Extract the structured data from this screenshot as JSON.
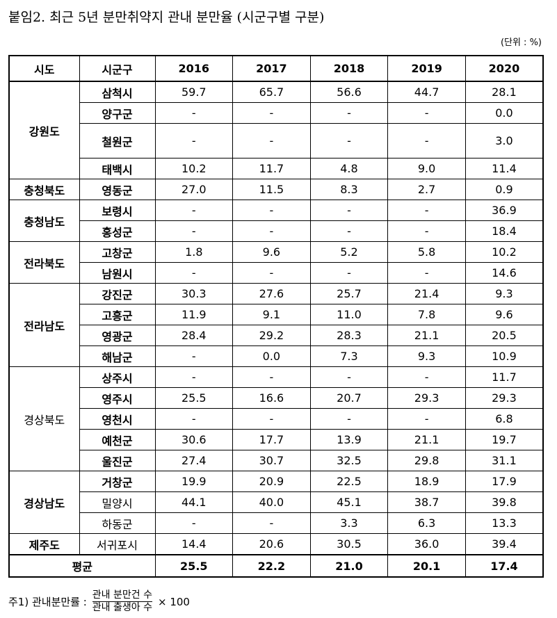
{
  "title": "붙임2. 최근 5년 분만취약지 관내 분만율 (시군구별 구분)",
  "unit": "(단위 : %)",
  "table": {
    "header": [
      "시도",
      "시군구",
      "2016",
      "2017",
      "2018",
      "2019",
      "2020"
    ],
    "groups": [
      {
        "province": "강원도",
        "rows": [
          {
            "district": "삼척시",
            "values": [
              "59.7",
              "65.7",
              "56.6",
              "44.7",
              "28.1"
            ]
          },
          {
            "district": "양구군",
            "values": [
              "-",
              "-",
              "-",
              "-",
              "0.0"
            ]
          },
          {
            "district": "철원군",
            "values": [
              "-",
              "-",
              "-",
              "-",
              "3.0"
            ]
          },
          {
            "district": "태백시",
            "values": [
              "10.2",
              "11.7",
              "4.8",
              "9.0",
              "11.4"
            ]
          }
        ]
      },
      {
        "province": "충청북도",
        "rows": [
          {
            "district": "영동군",
            "values": [
              "27.0",
              "11.5",
              "8.3",
              "2.7",
              "0.9"
            ]
          }
        ]
      },
      {
        "province": "충청남도",
        "rows": [
          {
            "district": "보령시",
            "values": [
              "-",
              "-",
              "-",
              "-",
              "36.9"
            ]
          },
          {
            "district": "홍성군",
            "values": [
              "-",
              "-",
              "-",
              "-",
              "18.4"
            ]
          }
        ]
      },
      {
        "province": "전라북도",
        "rows": [
          {
            "district": "고창군",
            "values": [
              "1.8",
              "9.6",
              "5.2",
              "5.8",
              "10.2"
            ]
          },
          {
            "district": "남원시",
            "values": [
              "-",
              "-",
              "-",
              "-",
              "14.6"
            ]
          }
        ]
      },
      {
        "province": "전라남도",
        "rows": [
          {
            "district": "강진군",
            "values": [
              "30.3",
              "27.6",
              "25.7",
              "21.4",
              "9.3"
            ]
          },
          {
            "district": "고흥군",
            "values": [
              "11.9",
              "9.1",
              "11.0",
              "7.8",
              "9.6"
            ]
          },
          {
            "district": "영광군",
            "values": [
              "28.4",
              "29.2",
              "28.3",
              "21.1",
              "20.5"
            ]
          },
          {
            "district": "해남군",
            "values": [
              "-",
              "0.0",
              "7.3",
              "9.3",
              "10.9"
            ]
          }
        ]
      },
      {
        "province": "경상북도",
        "rows": [
          {
            "district": "상주시",
            "values": [
              "-",
              "-",
              "-",
              "-",
              "11.7"
            ]
          },
          {
            "district": "영주시",
            "values": [
              "25.5",
              "16.6",
              "20.7",
              "29.3",
              "29.3"
            ]
          },
          {
            "district": "영천시",
            "values": [
              "-",
              "-",
              "-",
              "-",
              "6.8"
            ]
          },
          {
            "district": "예천군",
            "values": [
              "30.6",
              "17.7",
              "13.9",
              "21.1",
              "19.7"
            ]
          },
          {
            "district": "울진군",
            "values": [
              "27.4",
              "30.7",
              "32.5",
              "29.8",
              "31.1"
            ]
          }
        ]
      },
      {
        "province": "경상남도",
        "rows": [
          {
            "district": "거창군",
            "values": [
              "19.9",
              "20.9",
              "22.5",
              "18.9",
              "17.9"
            ]
          },
          {
            "district": "밀양시",
            "values": [
              "44.1",
              "40.0",
              "45.1",
              "38.7",
              "39.8"
            ]
          },
          {
            "district": "하동군",
            "values": [
              "-",
              "-",
              "3.3",
              "6.3",
              "13.3"
            ]
          }
        ]
      },
      {
        "province": "제주도",
        "rows": [
          {
            "district": "서귀포시",
            "values": [
              "14.4",
              "20.6",
              "30.5",
              "36.0",
              "39.4"
            ]
          }
        ]
      }
    ],
    "average": {
      "label": "평균",
      "values": [
        "25.5",
        "22.2",
        "21.0",
        "20.1",
        "17.4"
      ]
    }
  },
  "footnote": {
    "label": "주1) 관내분만률 :",
    "numerator": "관내 분만건 수",
    "denominator": "관내 출생아 수",
    "multiplier": "× 100"
  }
}
